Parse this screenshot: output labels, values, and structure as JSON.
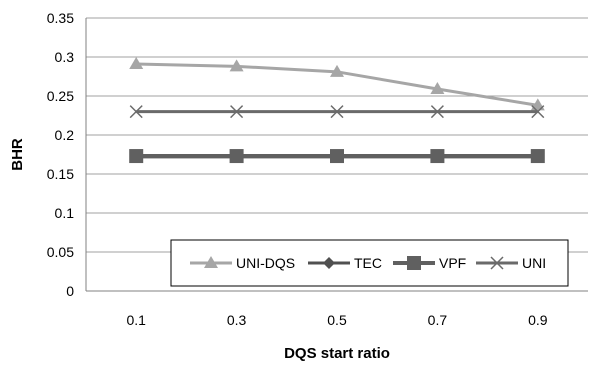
{
  "chart_data": {
    "type": "line",
    "title": "",
    "xlabel": "DQS start ratio",
    "ylabel": "BHR",
    "categories": [
      "0.1",
      "0.3",
      "0.5",
      "0.7",
      "0.9"
    ],
    "ylim": [
      0,
      0.35
    ],
    "yticks": [
      "0",
      "0.05",
      "0.1",
      "0.15",
      "0.2",
      "0.25",
      "0.3",
      "0.35"
    ],
    "grid": "horizontal",
    "legend_position": "bottom-right inside plot",
    "series": [
      {
        "name": "UNI-DQS",
        "values": [
          0.291,
          0.288,
          0.281,
          0.259,
          0.238
        ],
        "color": "#a6a6a6",
        "marker": "triangle",
        "width": 3
      },
      {
        "name": "TEC",
        "values": [
          0.172,
          0.172,
          0.172,
          0.172,
          0.172
        ],
        "color": "#505050",
        "marker": "diamond",
        "width": 3
      },
      {
        "name": "VPF",
        "values": [
          0.173,
          0.173,
          0.173,
          0.173,
          0.173
        ],
        "color": "#606060",
        "marker": "square",
        "width": 4
      },
      {
        "name": "UNI",
        "values": [
          0.23,
          0.23,
          0.23,
          0.23,
          0.23
        ],
        "color": "#6a6a6a",
        "marker": "x",
        "width": 3
      }
    ]
  }
}
